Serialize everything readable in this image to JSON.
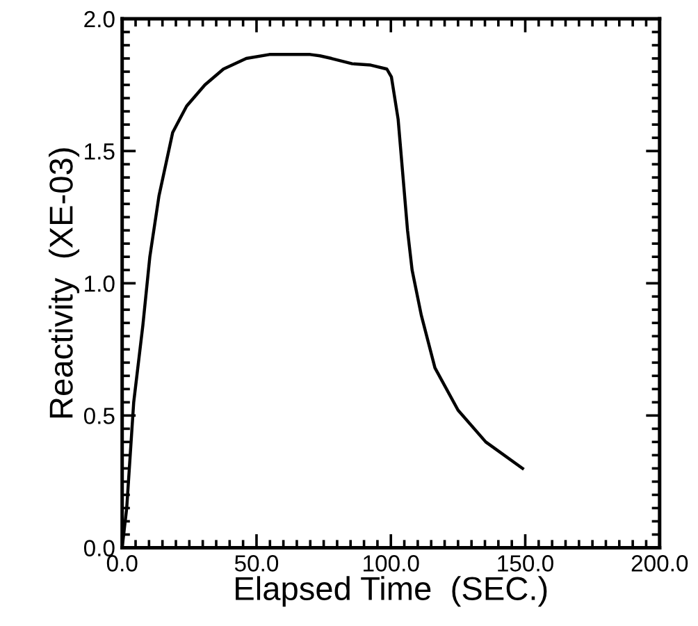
{
  "chart_data": {
    "type": "line",
    "xlabel": "Elapsed Time  (SEC.)",
    "ylabel": "Reactivity  (XE-03)",
    "x": [
      0,
      1.7,
      4.3,
      7.7,
      10.3,
      13.7,
      18.8,
      24,
      30.8,
      37.7,
      46.2,
      54.8,
      70,
      73.6,
      77.9,
      85.6,
      92.5,
      98.5,
      100.2,
      102.7,
      106.2,
      107.9,
      111.3,
      116.4,
      125,
      135.3,
      149
    ],
    "series": [
      {
        "color": "#000000",
        "values": [
          0,
          0.15,
          0.55,
          0.84,
          1.1,
          1.33,
          1.57,
          1.67,
          1.75,
          1.81,
          1.85,
          1.865,
          1.865,
          1.86,
          1.85,
          1.83,
          1.825,
          1.81,
          1.78,
          1.62,
          1.2,
          1.05,
          0.88,
          0.68,
          0.52,
          0.4,
          0.3
        ]
      }
    ],
    "xlim": [
      0,
      200
    ],
    "ylim": [
      0,
      2.0
    ],
    "xticks": [
      {
        "value": 0,
        "label": "0.0"
      },
      {
        "value": 50,
        "label": "50.0"
      },
      {
        "value": 100,
        "label": "100.0"
      },
      {
        "value": 150,
        "label": "150.0"
      },
      {
        "value": 200,
        "label": "200.0"
      }
    ],
    "yticks": [
      {
        "value": 0,
        "label": "0.0"
      },
      {
        "value": 0.5,
        "label": "0.5"
      },
      {
        "value": 1.0,
        "label": "1.0"
      },
      {
        "value": 1.5,
        "label": "1.5"
      },
      {
        "value": 2.0,
        "label": "2.0"
      }
    ],
    "grid": false,
    "legend": false,
    "marker": "none",
    "line_style": "solid"
  }
}
